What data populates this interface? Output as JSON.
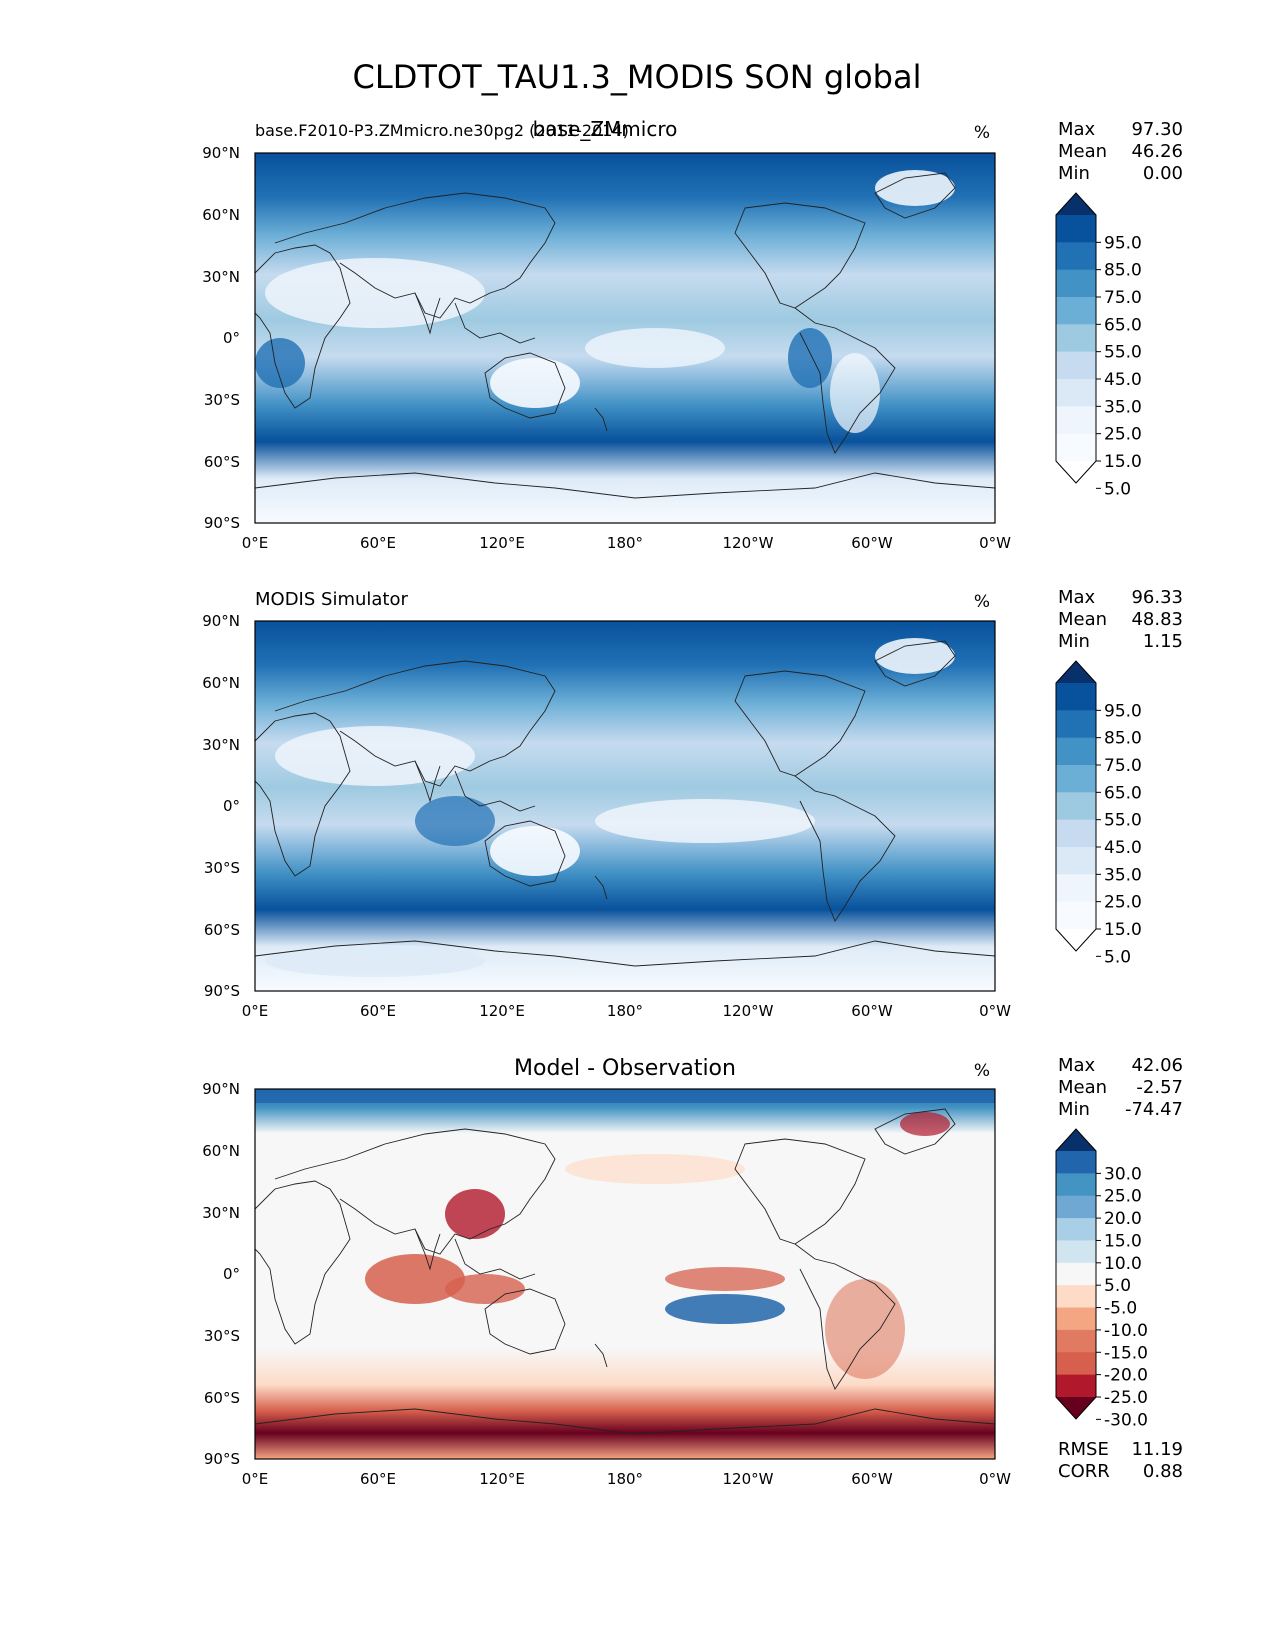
{
  "figure": {
    "title": "CLDTOT_TAU1.3_MODIS SON global"
  },
  "axes": {
    "lat_ticks": [
      "90°N",
      "60°N",
      "30°N",
      "0°",
      "30°S",
      "60°S",
      "90°S"
    ],
    "lon_ticks": [
      "0°E",
      "60°E",
      "120°E",
      "180°",
      "120°W",
      "60°W",
      "0°W"
    ]
  },
  "panels": [
    {
      "id": "test",
      "left_title": "base.F2010-P3.ZMmicro.ne30pg2 (2011-2014)",
      "center_title": "base_ZMmicro",
      "units": "%",
      "stats": [
        {
          "label": "Max",
          "value": "97.30"
        },
        {
          "label": "Mean",
          "value": "46.26"
        },
        {
          "label": "Min",
          "value": "0.00"
        }
      ],
      "colorbar": {
        "labels": [
          "95.0",
          "85.0",
          "75.0",
          "65.0",
          "55.0",
          "45.0",
          "35.0",
          "25.0",
          "15.0",
          "5.0"
        ],
        "colors": [
          "#08306b",
          "#08519c",
          "#2171b5",
          "#4292c6",
          "#6baed6",
          "#9ecae1",
          "#c6dbef",
          "#dbe9f6",
          "#eef5fc",
          "#f7fbff",
          "#ffffff"
        ]
      },
      "palette": "Blues"
    },
    {
      "id": "reference",
      "left_title": "MODIS Simulator",
      "center_title": "",
      "units": "%",
      "stats": [
        {
          "label": "Max",
          "value": "96.33"
        },
        {
          "label": "Mean",
          "value": "48.83"
        },
        {
          "label": "Min",
          "value": "1.15"
        }
      ],
      "colorbar": {
        "labels": [
          "95.0",
          "85.0",
          "75.0",
          "65.0",
          "55.0",
          "45.0",
          "35.0",
          "25.0",
          "15.0",
          "5.0"
        ],
        "colors": [
          "#08306b",
          "#08519c",
          "#2171b5",
          "#4292c6",
          "#6baed6",
          "#9ecae1",
          "#c6dbef",
          "#dbe9f6",
          "#eef5fc",
          "#f7fbff",
          "#ffffff"
        ]
      },
      "palette": "Blues"
    },
    {
      "id": "diff",
      "left_title": "",
      "center_title": "Model - Observation",
      "units": "%",
      "stats": [
        {
          "label": "Max",
          "value": "42.06"
        },
        {
          "label": "Mean",
          "value": "-2.57"
        },
        {
          "label": "Min",
          "value": "-74.47"
        }
      ],
      "colorbar": {
        "labels": [
          "30.0",
          "25.0",
          "20.0",
          "15.0",
          "10.0",
          "5.0",
          "-5.0",
          "-10.0",
          "-15.0",
          "-20.0",
          "-25.0",
          "-30.0"
        ],
        "colors": [
          "#08306b",
          "#2166ac",
          "#4393c3",
          "#6fa9d3",
          "#a8cfe6",
          "#d1e5f0",
          "#f7f7f7",
          "#fddbc7",
          "#f4a582",
          "#e07b62",
          "#d6604d",
          "#b2182b",
          "#67001f"
        ]
      },
      "palette": "RdBu",
      "metrics": [
        {
          "label": "RMSE",
          "value": "11.19"
        },
        {
          "label": "CORR",
          "value": "0.88"
        }
      ]
    }
  ]
}
